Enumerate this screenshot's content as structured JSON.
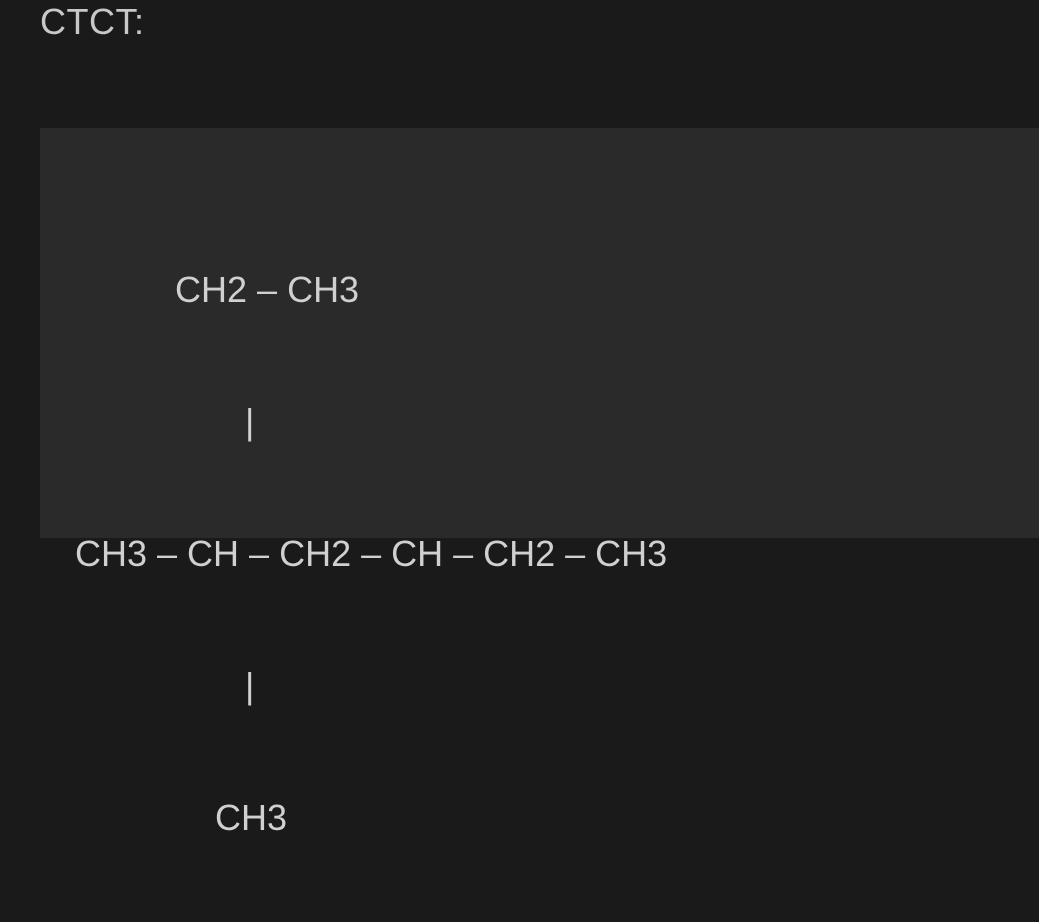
{
  "header": {
    "label": "CTCT:"
  },
  "formula": {
    "line1": "           CH2 – CH3",
    "line2": "                  |",
    "line3": " CH3 – CH – CH2 – CH – CH2 – CH3",
    "line4": "                  |",
    "line5": "               CH3"
  },
  "colors": {
    "page_bg": "#1a1a1a",
    "box_bg": "#2a2a2a",
    "text": "#c8c8c8"
  }
}
